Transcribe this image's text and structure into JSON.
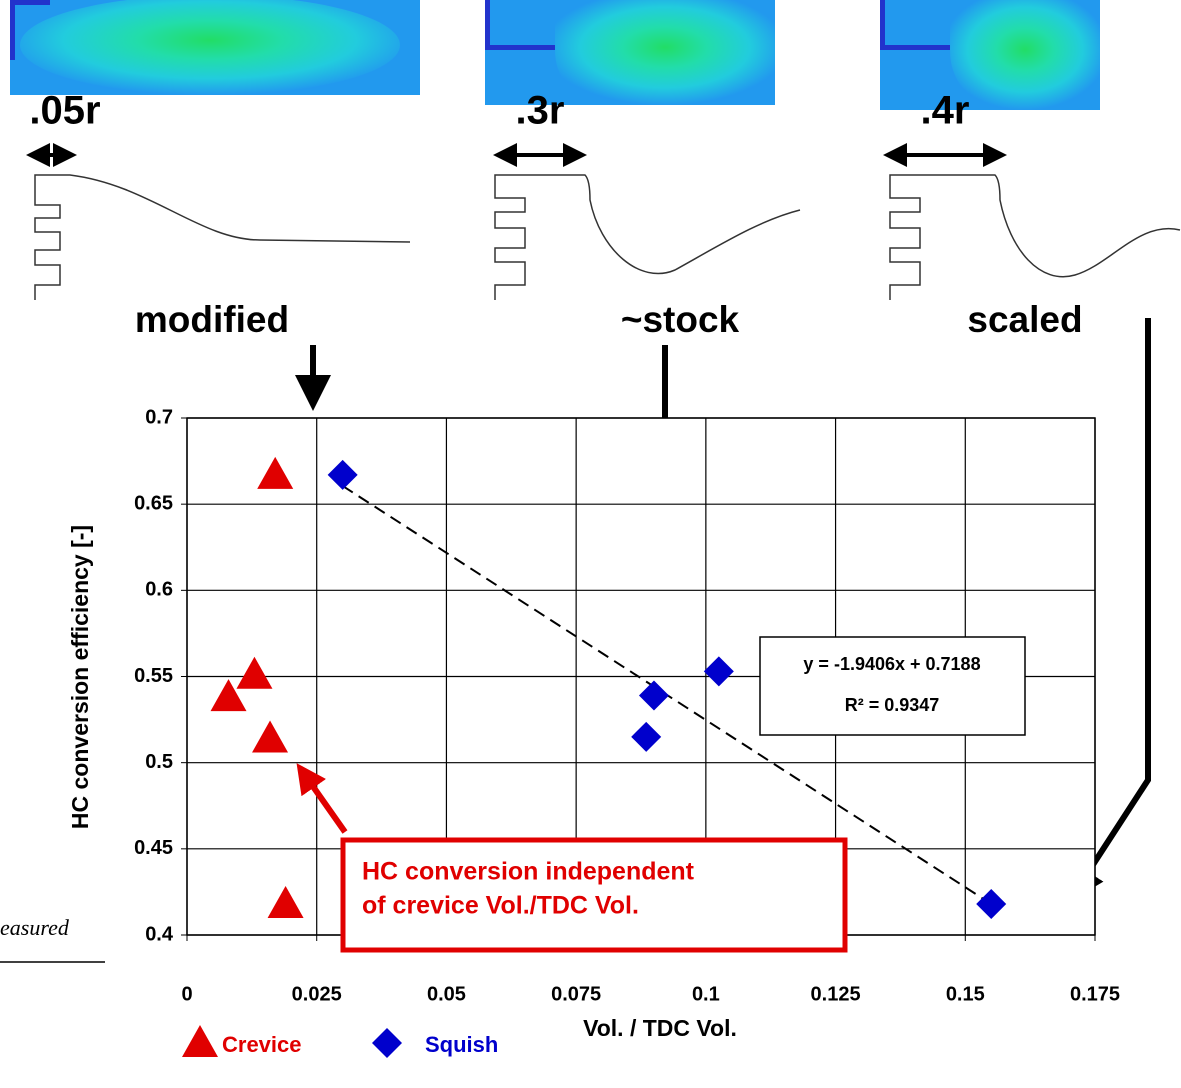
{
  "chart_data": {
    "type": "scatter",
    "xlabel": "Vol. / TDC Vol.",
    "ylabel": "HC conversion efficiency [-]",
    "xlim": [
      0,
      0.175
    ],
    "ylim": [
      0.4,
      0.7
    ],
    "xticks": [
      0,
      0.025,
      0.05,
      0.075,
      0.1,
      0.125,
      0.15,
      0.175
    ],
    "yticks": [
      0.4,
      0.45,
      0.5,
      0.55,
      0.6,
      0.65,
      0.7
    ],
    "grid": true,
    "series": [
      {
        "name": "Crevice",
        "color": "#e00000",
        "marker": "triangle",
        "x": [
          0.017,
          0.013,
          0.008,
          0.016,
          0.019
        ],
        "values": [
          0.667,
          0.551,
          0.538,
          0.514,
          0.418
        ]
      },
      {
        "name": "Squish",
        "color": "#0000cc",
        "marker": "diamond",
        "x": [
          0.03,
          0.09,
          0.0885,
          0.1025,
          0.155
        ],
        "values": [
          0.667,
          0.539,
          0.515,
          0.553,
          0.418
        ]
      }
    ],
    "trendline": {
      "slope": -1.9406,
      "intercept": 0.7188,
      "equation": "y = -1.9406x + 0.7188",
      "r_squared": "R² = 0.9347"
    },
    "annotation": [
      "HC conversion independent",
      "of crevice Vol./TDC Vol."
    ],
    "geometries": [
      {
        "width": ".05r",
        "name": "modified"
      },
      {
        "width": ".3r",
        "name": "~stock"
      },
      {
        "width": ".4r",
        "name": "scaled"
      }
    ],
    "side_note": "easured"
  }
}
